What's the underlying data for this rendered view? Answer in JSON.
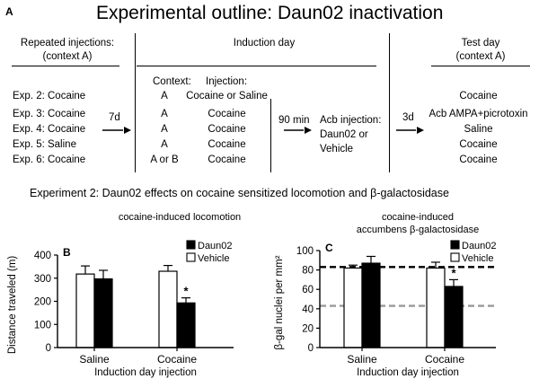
{
  "panel_letter": "A",
  "title": "Experimental outline: Daun02 inactivation",
  "outline": {
    "col1_header": [
      "Repeated injections:",
      "(context A)"
    ],
    "col2_header": "Induction day",
    "col3_header": [
      "Test day",
      "(context A)"
    ],
    "context_label": "Context:",
    "injection_label": "Injection:",
    "gap1": "7d",
    "gap2": "90 min",
    "gap3": "3d",
    "acb_injection": [
      "Acb injection:",
      "Daun02 or",
      "Vehicle"
    ],
    "rows": [
      {
        "exp": "Exp. 2: Cocaine",
        "context": "A",
        "injection": "Cocaine or Saline",
        "test": "Cocaine"
      },
      {
        "exp": "Exp. 3: Cocaine",
        "context": "A",
        "injection": "Cocaine",
        "test": "Acb AMPA+picrotoxin"
      },
      {
        "exp": "Exp. 4: Cocaine",
        "context": "A",
        "injection": "Cocaine",
        "test": "Saline"
      },
      {
        "exp": "Exp. 5: Saline",
        "context": "A",
        "injection": "Cocaine",
        "test": "Cocaine"
      },
      {
        "exp": "Exp. 6: Cocaine",
        "context": "A or B",
        "injection": "Cocaine",
        "test": "Cocaine"
      }
    ]
  },
  "experiment2_title": "Experiment 2: Daun02 effects on cocaine sensitized locomotion and β-galactosidase",
  "chart_data": [
    {
      "type": "bar",
      "panel": "B",
      "title": "cocaine-induced locomotion",
      "xlabel": "Induction day injection",
      "ylabel": "Distance traveled (m)",
      "ylim": [
        0,
        400
      ],
      "yticks": [
        0,
        100,
        200,
        300,
        400
      ],
      "categories": [
        "Saline",
        "Cocaine"
      ],
      "series": [
        {
          "name": "Daun02",
          "color": "#000000",
          "values": [
            297,
            193
          ],
          "errors": [
            37,
            22
          ]
        },
        {
          "name": "Vehicle",
          "color": "#ffffff",
          "values": [
            318,
            330
          ],
          "errors": [
            35,
            25
          ]
        }
      ],
      "annotations": [
        "*"
      ],
      "legend_position": "top-right"
    },
    {
      "type": "bar",
      "panel": "C",
      "title": [
        "cocaine-induced",
        "accumbens β-galactosidase"
      ],
      "xlabel": "Induction day injection",
      "ylabel": "β-gal nuclei per mm²",
      "ylim": [
        0,
        100
      ],
      "yticks": [
        0,
        20,
        40,
        60,
        80,
        100
      ],
      "categories": [
        "Saline",
        "Cocaine"
      ],
      "series": [
        {
          "name": "Daun02",
          "color": "#000000",
          "values": [
            87,
            63
          ],
          "errors": [
            7,
            7
          ]
        },
        {
          "name": "Vehicle",
          "color": "#ffffff",
          "values": [
            82,
            82
          ],
          "errors": [
            3,
            6
          ]
        }
      ],
      "reference_lines": [
        {
          "y": 83,
          "color": "#000000",
          "style": "dashed"
        },
        {
          "y": 43,
          "color": "#999999",
          "style": "dashed"
        }
      ],
      "annotations": [
        "*"
      ],
      "legend_position": "top-right"
    }
  ]
}
